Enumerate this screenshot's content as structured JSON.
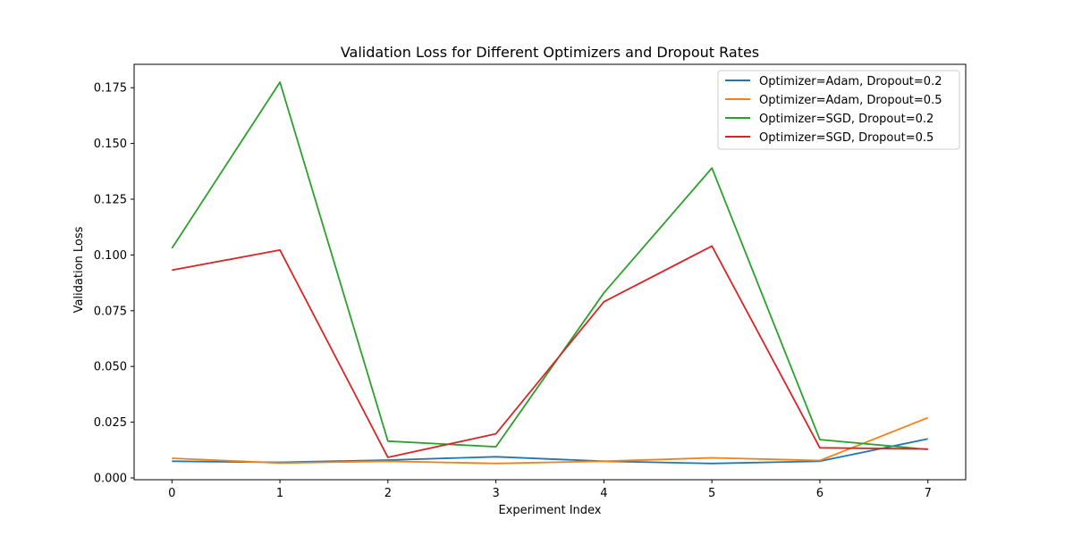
{
  "chart_data": {
    "type": "line",
    "title": "Validation Loss for Different Optimizers and Dropout Rates",
    "xlabel": "Experiment Index",
    "ylabel": "Validation Loss",
    "x": [
      0,
      1,
      2,
      3,
      4,
      5,
      6,
      7
    ],
    "xticks": [
      "0",
      "1",
      "2",
      "3",
      "4",
      "5",
      "6",
      "7"
    ],
    "yticks": [
      "0.000",
      "0.025",
      "0.050",
      "0.075",
      "0.100",
      "0.125",
      "0.150",
      "0.175"
    ],
    "ylim": [
      -0.0008,
      0.1855
    ],
    "xlim": [
      -0.35,
      7.35
    ],
    "grid": false,
    "legend_position": "top-right",
    "series": [
      {
        "name": "Optimizer=Adam, Dropout=0.2",
        "color": "#1f77b4",
        "values": [
          0.0075,
          0.007,
          0.008,
          0.0095,
          0.0075,
          0.0065,
          0.0075,
          0.0175
        ]
      },
      {
        "name": "Optimizer=Adam, Dropout=0.5",
        "color": "#ff7f0e",
        "values": [
          0.0088,
          0.0067,
          0.0075,
          0.0065,
          0.0075,
          0.009,
          0.0078,
          0.027
        ]
      },
      {
        "name": "Optimizer=SGD, Dropout=0.2",
        "color": "#2ca02c",
        "values": [
          0.103,
          0.1775,
          0.0165,
          0.014,
          0.083,
          0.139,
          0.0172,
          0.0128
        ]
      },
      {
        "name": "Optimizer=SGD, Dropout=0.5",
        "color": "#d62728",
        "values": [
          0.0932,
          0.1022,
          0.0092,
          0.0198,
          0.079,
          0.104,
          0.0135,
          0.013
        ]
      }
    ]
  }
}
